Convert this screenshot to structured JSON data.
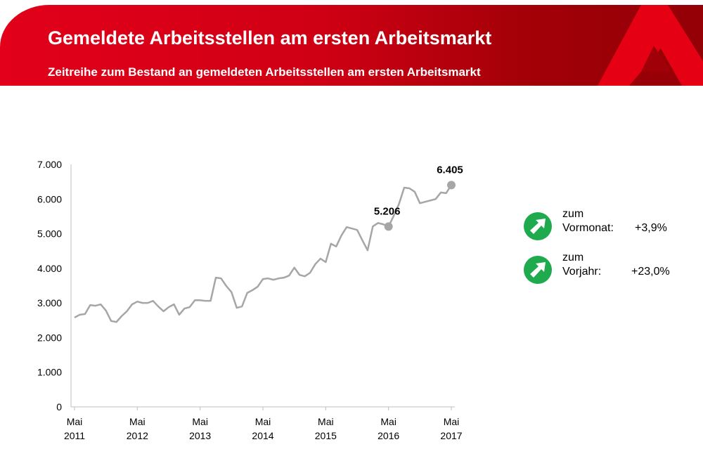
{
  "header": {
    "title": "Gemeldete Arbeitsstellen am ersten Arbeitsmarkt",
    "subtitle": "Zeitreihe zum Bestand an gemeldeten Arbeitsstellen am ersten Arbeitsmarkt"
  },
  "colors": {
    "brand_red": "#e2001a",
    "brand_dark": "#930006",
    "line": "#a6a6a6",
    "kpi_green": "#1faa4e"
  },
  "kpis": [
    {
      "icon": "arrow-up-right-icon",
      "line1": "zum",
      "line2": "Vormonat:",
      "value": "+3,9%"
    },
    {
      "icon": "arrow-up-right-icon",
      "line1": "zum",
      "line2": "Vorjahr:",
      "value": "+23,0%"
    }
  ],
  "chart_data": {
    "type": "line",
    "title": "",
    "xlabel": "",
    "ylabel": "",
    "ylim": [
      0,
      7000
    ],
    "yticks": [
      "0",
      "1.000",
      "2.000",
      "3.000",
      "4.000",
      "5.000",
      "6.000",
      "7.000"
    ],
    "xticks": [
      {
        "month": "Mai",
        "year": "2011"
      },
      {
        "month": "Mai",
        "year": "2012"
      },
      {
        "month": "Mai",
        "year": "2013"
      },
      {
        "month": "Mai",
        "year": "2014"
      },
      {
        "month": "Mai",
        "year": "2015"
      },
      {
        "month": "Mai",
        "year": "2016"
      },
      {
        "month": "Mai",
        "year": "2017"
      }
    ],
    "x_range": [
      "2011-05",
      "2017-05"
    ],
    "frequency": "monthly",
    "grid": false,
    "values": [
      2580,
      2660,
      2680,
      2940,
      2920,
      2960,
      2780,
      2480,
      2450,
      2620,
      2760,
      2960,
      3040,
      3000,
      3000,
      3060,
      2900,
      2760,
      2880,
      2960,
      2660,
      2840,
      2880,
      3080,
      3080,
      3060,
      3060,
      3730,
      3710,
      3490,
      3310,
      2860,
      2900,
      3290,
      3370,
      3470,
      3690,
      3710,
      3670,
      3710,
      3730,
      3790,
      4020,
      3810,
      3770,
      3870,
      4120,
      4280,
      4180,
      4710,
      4630,
      4950,
      5190,
      5150,
      5110,
      4810,
      4520,
      5210,
      5310,
      5270,
      5206,
      5520,
      5860,
      6330,
      6310,
      6210,
      5880,
      5920,
      5960,
      6000,
      6190,
      6170,
      6405
    ],
    "annotations": [
      {
        "date": "2016-05",
        "value": 5206,
        "label": "5.206"
      },
      {
        "date": "2017-05",
        "value": 6405,
        "label": "6.405"
      }
    ]
  }
}
